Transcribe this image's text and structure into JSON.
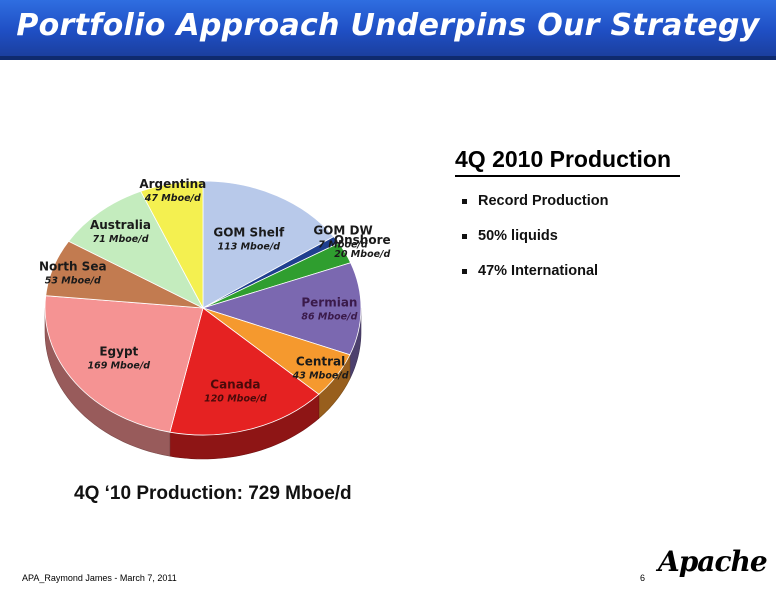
{
  "slide": {
    "title": "Portfolio Approach Underpins Our Strategy",
    "side_heading": "4Q 2010 Production",
    "bullets": [
      "Record Production",
      "50% liquids",
      "47% International"
    ],
    "total_label": "4Q ‘10 Production: 729 Mboe/d",
    "footer": "APA_Raymond James - March 7, 2011",
    "page_number": "6",
    "logo_text": "Apache",
    "banner_color": "#1f4fc4"
  },
  "chart_data": {
    "type": "pie",
    "unit": "Mboe/d",
    "slices": [
      {
        "label": "GOM Shelf",
        "value_label": "113 Mboe/d",
        "value": 113,
        "color": "#b8c9ea"
      },
      {
        "label": "GOM DW",
        "value_label": "7 Mboe/d",
        "value": 7,
        "color": "#1f3f8f"
      },
      {
        "label": "Onshore",
        "value_label": "20 Mboe/d",
        "value": 20,
        "color": "#2f9e2f"
      },
      {
        "label": "Permian",
        "value_label": "86 Mboe/d",
        "value": 86,
        "color": "#7b68b0"
      },
      {
        "label": "Central",
        "value_label": "43 Mboe/d",
        "value": 43,
        "color": "#f5992e"
      },
      {
        "label": "Canada",
        "value_label": "120 Mboe/d",
        "value": 120,
        "color": "#e52222"
      },
      {
        "label": "Egypt",
        "value_label": "169 Mboe/d",
        "value": 169,
        "color": "#f59393"
      },
      {
        "label": "North Sea",
        "value_label": "53 Mboe/d",
        "value": 53,
        "color": "#c27b50"
      },
      {
        "label": "Australia",
        "value_label": "71 Mboe/d",
        "value": 71,
        "color": "#c4ecbe"
      },
      {
        "label": "Argentina",
        "value_label": "47 Mboe/d",
        "value": 47,
        "color": "#f4f050"
      }
    ]
  }
}
